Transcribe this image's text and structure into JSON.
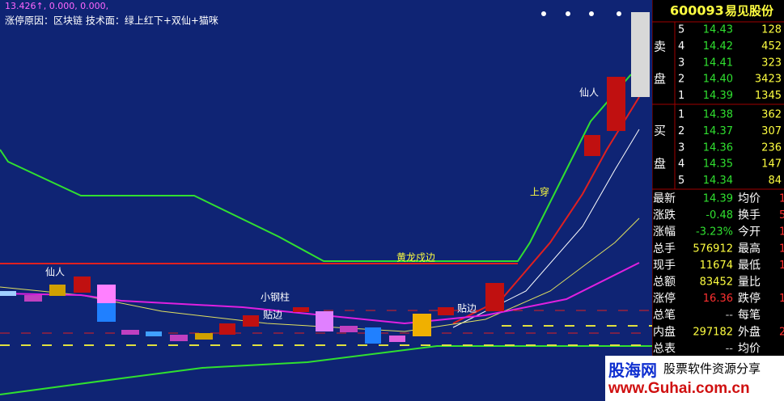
{
  "chart_panel": {
    "indicator_line": "13.426↑, 0.000, 0.000,",
    "reason_line": "涨停原因：区块链  技术面：绿上红下+双仙+猫咪",
    "annotations": [
      "仙人",
      "上穿",
      "黄龙戍边",
      "仙人",
      "小钢柱",
      "贴边",
      "贴边"
    ]
  },
  "quote_panel": {
    "code": "600093",
    "name": "易见股份",
    "sell_label": [
      "卖",
      "盘"
    ],
    "buy_label": [
      "买",
      "盘"
    ],
    "sell_rows": [
      [
        "5",
        "14.43",
        "128"
      ],
      [
        "4",
        "14.42",
        "452"
      ],
      [
        "3",
        "14.41",
        "323"
      ],
      [
        "2",
        "14.40",
        "3423"
      ],
      [
        "1",
        "14.39",
        "1345"
      ]
    ],
    "buy_rows": [
      [
        "1",
        "14.38",
        "362"
      ],
      [
        "2",
        "14.37",
        "307"
      ],
      [
        "3",
        "14.36",
        "236"
      ],
      [
        "4",
        "14.35",
        "147"
      ],
      [
        "5",
        "14.34",
        "84"
      ]
    ],
    "stats": [
      [
        "最新",
        "14.39",
        "均价",
        "1"
      ],
      [
        "涨跌",
        "-0.48",
        "换手",
        "5"
      ],
      [
        "涨幅",
        "-3.23%",
        "今开",
        "1"
      ],
      [
        "总手",
        "576912",
        "最高",
        "1"
      ],
      [
        "现手",
        "11674",
        "最低",
        "1"
      ],
      [
        "总额",
        "83452",
        "量比"
      ],
      [
        "涨停",
        "16.36",
        "跌停",
        "1"
      ],
      [
        "总笔",
        "--",
        "每笔"
      ],
      [
        "内盘",
        "297182",
        "外盘",
        "2"
      ],
      [
        "总表",
        "--",
        "均价"
      ]
    ]
  },
  "watermark": {
    "brand": "股海网",
    "slogan": "股票软件资源分享",
    "url": "www.Guhai.com.cn"
  }
}
